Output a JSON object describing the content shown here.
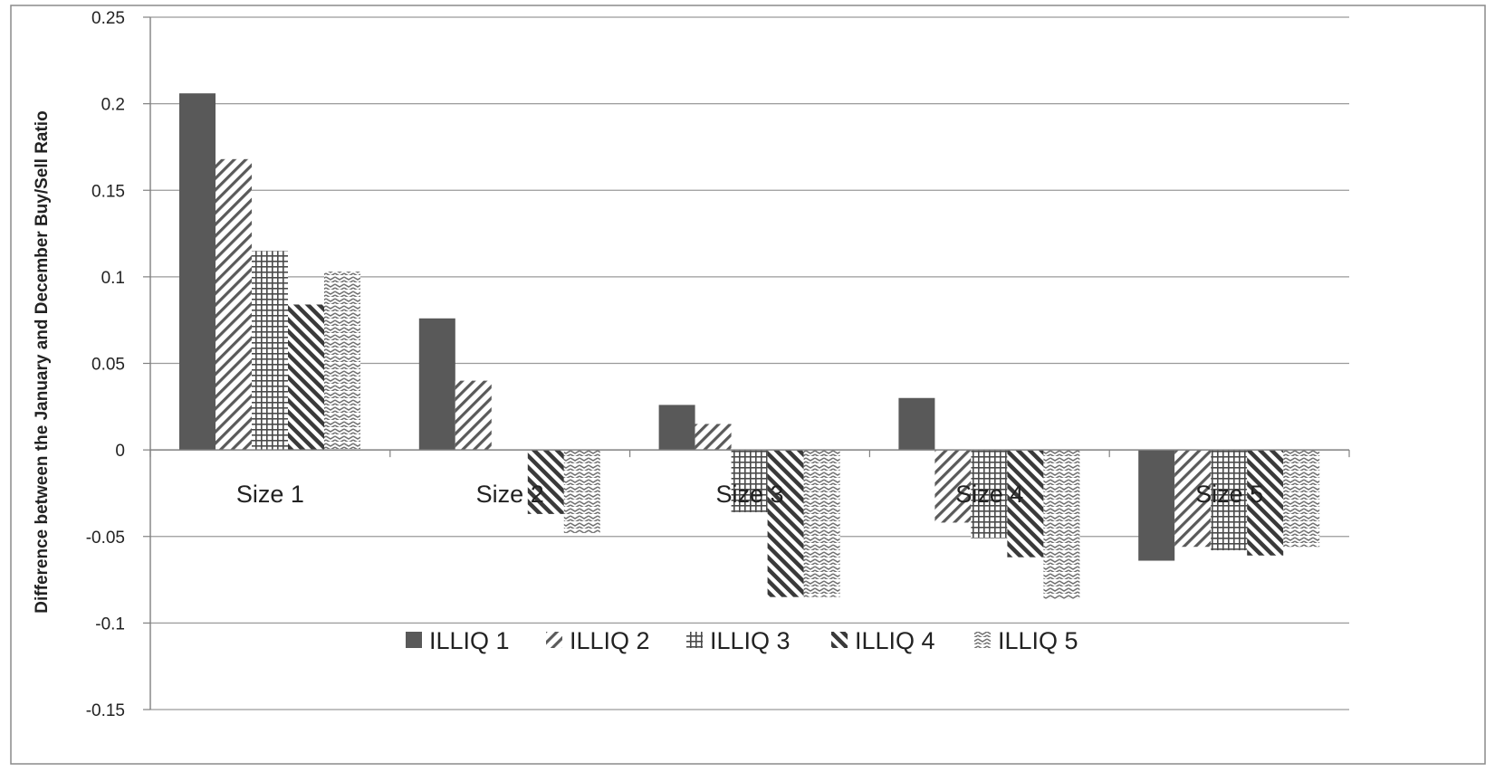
{
  "chart_data": {
    "type": "bar",
    "title": "",
    "xlabel": "",
    "ylabel": "Difference between the January and December Buy/Sell Ratio",
    "ylim": [
      -0.15,
      0.25
    ],
    "yticks": [
      "0.25",
      "0.2",
      "0.15",
      "0.1",
      "0.05",
      "0",
      "-0.05",
      "-0.1",
      "-0.15"
    ],
    "ytick_values": [
      0.25,
      0.2,
      0.15,
      0.1,
      0.05,
      0,
      -0.05,
      -0.1,
      -0.15
    ],
    "grid": true,
    "legend_position": "bottom",
    "categories": [
      "Size 1",
      "Size 2",
      "Size 3",
      "Size 4",
      "Size 5"
    ],
    "series": [
      {
        "name": "ILLIQ 1",
        "pattern": "solid",
        "color": "#595959",
        "values": [
          0.206,
          0.076,
          0.026,
          0.03,
          -0.064
        ]
      },
      {
        "name": "ILLIQ 2",
        "pattern": "diagonal-up",
        "color": "#595959",
        "values": [
          0.168,
          0.04,
          0.015,
          -0.042,
          -0.056
        ]
      },
      {
        "name": "ILLIQ 3",
        "pattern": "grid",
        "color": "#595959",
        "values": [
          0.115,
          0.0,
          -0.036,
          -0.051,
          -0.058
        ]
      },
      {
        "name": "ILLIQ 4",
        "pattern": "diagonal-down",
        "color": "#595959",
        "values": [
          0.084,
          -0.037,
          -0.085,
          -0.062,
          -0.061
        ]
      },
      {
        "name": "ILLIQ 5",
        "pattern": "zigzag",
        "color": "#595959",
        "values": [
          0.103,
          -0.048,
          -0.085,
          -0.086,
          -0.056
        ]
      }
    ]
  }
}
